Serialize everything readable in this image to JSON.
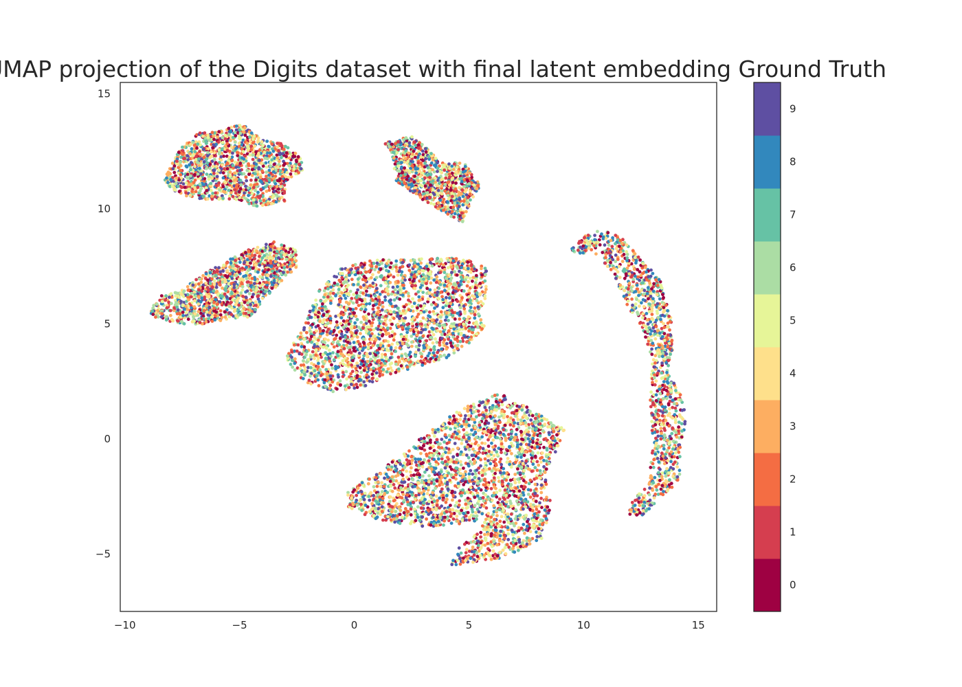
{
  "chart_data": {
    "type": "scatter",
    "title": "UMAP projection of the Digits dataset with final latent embedding Ground Truth",
    "xlabel": "",
    "ylabel": "",
    "xlim": [
      -10.2,
      15.8
    ],
    "ylim": [
      -7.5,
      15.5
    ],
    "xticks": [
      -10,
      -5,
      0,
      5,
      10,
      15
    ],
    "xtick_labels": [
      "−10",
      "−5",
      "0",
      "5",
      "10",
      "15"
    ],
    "yticks": [
      -5,
      0,
      5,
      10,
      15
    ],
    "ytick_labels": [
      "−5",
      "0",
      "5",
      "10",
      "15"
    ],
    "grid": false,
    "legend": "none",
    "colormap": "Spectral",
    "colorbar": {
      "labels": [
        "0",
        "1",
        "2",
        "3",
        "4",
        "5",
        "6",
        "7",
        "8",
        "9"
      ],
      "colors": [
        "#9e0142",
        "#d53e4f",
        "#f46d43",
        "#fdae61",
        "#fee08b",
        "#e6f598",
        "#abdda4",
        "#66c2a5",
        "#3288bd",
        "#5e4fa2"
      ]
    },
    "clusters": [
      {
        "polygon": [
          [
            -8.3,
            11.3
          ],
          [
            -7.6,
            12.6
          ],
          [
            -6.8,
            13.3
          ],
          [
            -5.8,
            13.4
          ],
          [
            -4.9,
            13.7
          ],
          [
            -4.0,
            13.0
          ],
          [
            -3.0,
            12.8
          ],
          [
            -2.3,
            12.2
          ],
          [
            -2.2,
            11.7
          ],
          [
            -3.0,
            11.2
          ],
          [
            -3.0,
            10.3
          ],
          [
            -4.3,
            10.1
          ],
          [
            -5.0,
            10.4
          ],
          [
            -6.5,
            10.4
          ],
          [
            -7.5,
            10.6
          ],
          [
            -8.2,
            11.0
          ]
        ],
        "count": 1400
      },
      {
        "polygon": [
          [
            1.3,
            12.9
          ],
          [
            2.5,
            13.2
          ],
          [
            3.2,
            12.6
          ],
          [
            3.8,
            12.0
          ],
          [
            4.8,
            12.0
          ],
          [
            5.5,
            11.0
          ],
          [
            5.1,
            10.3
          ],
          [
            4.7,
            9.4
          ],
          [
            4.0,
            9.8
          ],
          [
            3.0,
            10.4
          ],
          [
            1.8,
            11.2
          ],
          [
            1.7,
            12.2
          ]
        ],
        "count": 900
      },
      {
        "polygon": [
          [
            -9.0,
            5.5
          ],
          [
            -8.5,
            6.2
          ],
          [
            -7.5,
            6.5
          ],
          [
            -6.5,
            7.2
          ],
          [
            -5.5,
            7.8
          ],
          [
            -4.5,
            8.3
          ],
          [
            -3.5,
            8.6
          ],
          [
            -2.5,
            8.2
          ],
          [
            -2.5,
            7.5
          ],
          [
            -3.2,
            6.8
          ],
          [
            -4.0,
            6.0
          ],
          [
            -4.5,
            5.3
          ],
          [
            -5.5,
            5.2
          ],
          [
            -6.5,
            5.0
          ],
          [
            -7.5,
            5.0
          ],
          [
            -8.5,
            5.2
          ]
        ],
        "count": 1200
      },
      {
        "polygon": [
          [
            -3.0,
            3.5
          ],
          [
            -2.2,
            5.0
          ],
          [
            -1.5,
            6.5
          ],
          [
            -0.5,
            7.5
          ],
          [
            1.0,
            7.8
          ],
          [
            2.5,
            7.8
          ],
          [
            4.0,
            7.9
          ],
          [
            5.0,
            7.8
          ],
          [
            5.8,
            7.4
          ],
          [
            5.8,
            6.4
          ],
          [
            5.5,
            5.5
          ],
          [
            5.7,
            4.9
          ],
          [
            5.2,
            4.3
          ],
          [
            4.0,
            3.5
          ],
          [
            3.0,
            3.2
          ],
          [
            1.5,
            2.8
          ],
          [
            0.5,
            2.3
          ],
          [
            -0.8,
            2.0
          ],
          [
            -2.2,
            2.5
          ]
        ],
        "count": 2200
      },
      {
        "polygon": [
          [
            -0.3,
            -2.2
          ],
          [
            1.0,
            -1.5
          ],
          [
            2.5,
            -0.3
          ],
          [
            3.5,
            0.5
          ],
          [
            4.5,
            1.2
          ],
          [
            5.5,
            1.7
          ],
          [
            6.3,
            2.0
          ],
          [
            7.5,
            1.4
          ],
          [
            8.5,
            0.8
          ],
          [
            9.2,
            0.5
          ],
          [
            8.8,
            -0.5
          ],
          [
            8.3,
            -1.5
          ],
          [
            8.6,
            -3.0
          ],
          [
            8.2,
            -4.3
          ],
          [
            7.3,
            -4.8
          ],
          [
            6.3,
            -5.2
          ],
          [
            5.0,
            -5.4
          ],
          [
            4.2,
            -5.5
          ],
          [
            4.5,
            -4.8
          ],
          [
            5.5,
            -4.0
          ],
          [
            5.6,
            -3.5
          ],
          [
            4.0,
            -3.8
          ],
          [
            2.5,
            -3.8
          ],
          [
            1.0,
            -3.5
          ],
          [
            -0.3,
            -3.0
          ]
        ],
        "count": 2600
      },
      {
        "polygon": [
          [
            9.3,
            8.1
          ],
          [
            10.0,
            8.8
          ],
          [
            10.8,
            9.1
          ],
          [
            11.6,
            8.8
          ],
          [
            12.5,
            7.8
          ],
          [
            13.3,
            7.0
          ],
          [
            13.8,
            5.5
          ],
          [
            13.9,
            4.0
          ],
          [
            13.7,
            2.8
          ],
          [
            14.2,
            2.0
          ],
          [
            14.5,
            1.0
          ],
          [
            14.2,
            -0.5
          ],
          [
            14.2,
            -1.8
          ],
          [
            13.4,
            -2.5
          ],
          [
            12.6,
            -3.3
          ],
          [
            11.8,
            -3.4
          ],
          [
            12.1,
            -2.7
          ],
          [
            12.8,
            -2.0
          ],
          [
            13.0,
            -0.5
          ],
          [
            12.9,
            1.5
          ],
          [
            13.0,
            3.5
          ],
          [
            12.5,
            4.8
          ],
          [
            11.8,
            6.0
          ],
          [
            11.3,
            7.2
          ],
          [
            10.6,
            8.0
          ]
        ],
        "count": 1100
      }
    ]
  }
}
